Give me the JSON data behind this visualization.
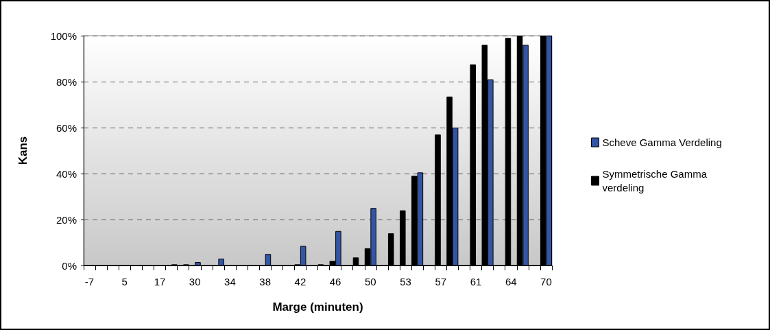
{
  "chart_data": {
    "type": "bar",
    "xlabel": "Marge (minuten)",
    "ylabel": "Kans",
    "categories": [
      "-7",
      null,
      null,
      "5",
      null,
      null,
      "17",
      null,
      null,
      "30",
      null,
      null,
      "34",
      null,
      null,
      "38",
      null,
      null,
      "42",
      null,
      null,
      "46",
      null,
      null,
      "50",
      null,
      null,
      "53",
      null,
      null,
      "57",
      null,
      null,
      "61",
      null,
      null,
      "64",
      null,
      null,
      "70"
    ],
    "series": [
      {
        "name": "Scheve Gamma Verdeling",
        "color": "#3355a5",
        "values": [
          0,
          0,
          0,
          0,
          0,
          0,
          0,
          0.5,
          0.5,
          1.5,
          0,
          3,
          0,
          0,
          0,
          5,
          0,
          0,
          8.5,
          0,
          0,
          15,
          0,
          0,
          25,
          0,
          0,
          0,
          40.5,
          0,
          0,
          60,
          0,
          0,
          81,
          0,
          0,
          96,
          0,
          100
        ]
      },
      {
        "name": "Symmetrische Gamma verdeling",
        "color": "#000000",
        "values": [
          0,
          0,
          0,
          0,
          0,
          0,
          0,
          0,
          0,
          0,
          0,
          0,
          0,
          0,
          0,
          0,
          0,
          0,
          0.5,
          0,
          0.5,
          2,
          0,
          3.5,
          7.5,
          0,
          14,
          24,
          39,
          0,
          57,
          73.5,
          0,
          87.5,
          96,
          0,
          99,
          100,
          0,
          100
        ]
      }
    ],
    "ylim": [
      0,
      100
    ],
    "yticks": [
      {
        "value": 0,
        "label": "0%"
      },
      {
        "value": 20,
        "label": "20%"
      },
      {
        "value": 40,
        "label": "40%"
      },
      {
        "value": 60,
        "label": "60%"
      },
      {
        "value": 80,
        "label": "80%"
      },
      {
        "value": 100,
        "label": "100%"
      }
    ],
    "grid": "y",
    "legend": "right"
  }
}
